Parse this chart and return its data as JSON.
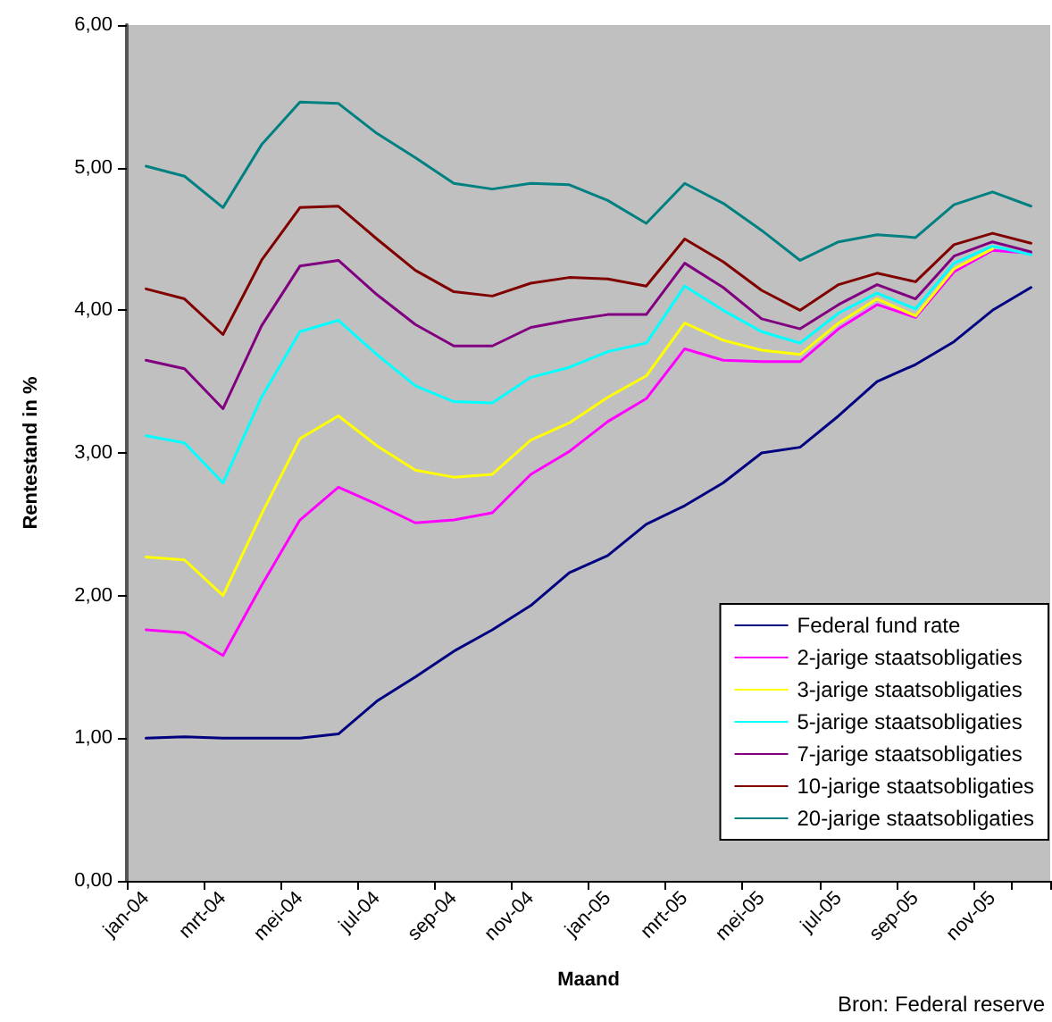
{
  "chart_data": {
    "type": "line",
    "xlabel": "Maand",
    "ylabel": "Rentestand in %",
    "annotations": [
      "Bron: Federal reserve"
    ],
    "categories": [
      "jan-04",
      null,
      "mrt-04",
      null,
      "mei-04",
      null,
      "jul-04",
      null,
      "sep-04",
      null,
      "nov-04",
      null,
      "jan-05",
      null,
      "mrt-05",
      null,
      "mei-05",
      null,
      "jul-05",
      null,
      "sep-05",
      null,
      "nov-05",
      null
    ],
    "series": [
      {
        "name": "Federal fund rate",
        "color": "#000080",
        "values": [
          1.0,
          1.01,
          1.0,
          1.0,
          1.0,
          1.03,
          1.26,
          1.43,
          1.61,
          1.76,
          1.93,
          2.16,
          2.28,
          2.5,
          2.63,
          2.79,
          3.0,
          3.04,
          3.26,
          3.5,
          3.62,
          3.78,
          4.0,
          4.16
        ]
      },
      {
        "name": "2-jarige staatsobligaties",
        "color": "#ff00ff",
        "values": [
          1.76,
          1.74,
          1.58,
          2.07,
          2.53,
          2.76,
          2.64,
          2.51,
          2.53,
          2.58,
          2.85,
          3.01,
          3.22,
          3.38,
          3.73,
          3.65,
          3.64,
          3.64,
          3.87,
          4.04,
          3.95,
          4.27,
          4.42,
          4.4
        ]
      },
      {
        "name": "3-jarige staatsobligaties",
        "color": "#ffff00",
        "values": [
          2.27,
          2.25,
          2.0,
          2.57,
          3.1,
          3.26,
          3.05,
          2.88,
          2.83,
          2.85,
          3.09,
          3.21,
          3.39,
          3.54,
          3.91,
          3.79,
          3.72,
          3.69,
          3.91,
          4.08,
          3.96,
          4.29,
          4.43,
          null
        ]
      },
      {
        "name": "5-jarige staatsobligaties",
        "color": "#00ffff",
        "values": [
          3.12,
          3.07,
          2.79,
          3.39,
          3.85,
          3.93,
          3.69,
          3.47,
          3.36,
          3.35,
          3.53,
          3.6,
          3.71,
          3.77,
          4.17,
          4.0,
          3.85,
          3.77,
          3.98,
          4.12,
          4.01,
          4.33,
          4.45,
          4.39
        ]
      },
      {
        "name": "7-jarige staatsobligaties",
        "color": "#800080",
        "values": [
          3.65,
          3.59,
          3.31,
          3.89,
          4.31,
          4.35,
          4.11,
          3.9,
          3.75,
          3.75,
          3.88,
          3.93,
          3.97,
          3.97,
          4.33,
          4.16,
          3.94,
          3.87,
          4.04,
          4.18,
          4.08,
          4.38,
          4.48,
          4.41
        ]
      },
      {
        "name": "10-jarige staatsobligaties",
        "color": "#800000",
        "values": [
          4.15,
          4.08,
          3.83,
          4.35,
          4.72,
          4.73,
          4.5,
          4.28,
          4.13,
          4.1,
          4.19,
          4.23,
          4.22,
          4.17,
          4.5,
          4.34,
          4.14,
          4.0,
          4.18,
          4.26,
          4.2,
          4.46,
          4.54,
          4.47
        ]
      },
      {
        "name": "20-jarige staatsobligaties",
        "color": "#008080",
        "values": [
          5.01,
          4.94,
          4.72,
          5.16,
          5.46,
          5.45,
          5.24,
          5.07,
          4.89,
          4.85,
          4.89,
          4.88,
          4.77,
          4.61,
          4.89,
          4.75,
          4.56,
          4.35,
          4.48,
          4.53,
          4.51,
          4.74,
          4.83,
          4.73
        ]
      }
    ],
    "ylim": [
      0,
      6
    ],
    "yticks": [
      {
        "value": 0,
        "label": "0,00"
      },
      {
        "value": 1,
        "label": "1,00"
      },
      {
        "value": 2,
        "label": "2,00"
      },
      {
        "value": 3,
        "label": "3,00"
      },
      {
        "value": 4,
        "label": "4,00"
      },
      {
        "value": 5,
        "label": "5,00"
      },
      {
        "value": 6,
        "label": "6,00"
      }
    ],
    "grid": false,
    "legend": "bottom right",
    "marker": "none",
    "line_style": "solid"
  }
}
